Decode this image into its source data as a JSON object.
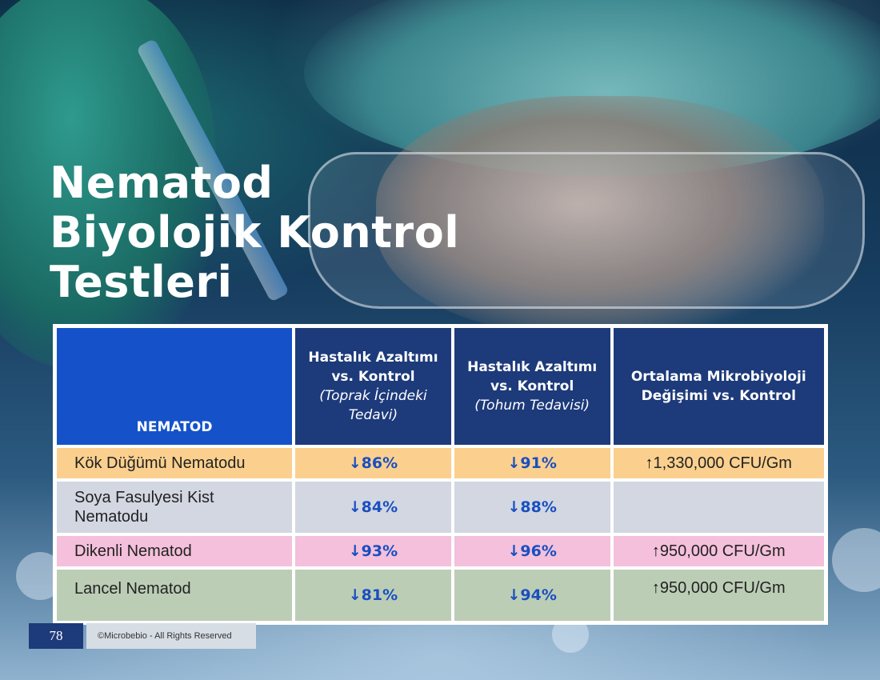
{
  "title_lines": [
    "Nematod",
    "Biyolojik Kontrol",
    "Testleri"
  ],
  "table": {
    "headers": [
      {
        "main": "NEMATOD",
        "sub": ""
      },
      {
        "main": "Hastalık Azaltımı vs. Kontrol",
        "sub": "(Toprak İçindeki Tedavi)"
      },
      {
        "main": "Hastalık Azaltımı vs. Kontrol",
        "sub": "(Tohum Tedavisi)"
      },
      {
        "main": "Ortalama Mikrobiyoloji Değişimi vs. Kontrol",
        "sub": ""
      }
    ],
    "rows": [
      {
        "name": "Kök Düğümü Nematodu",
        "soil": "86%",
        "seed": "91%",
        "cfu": "1,330,000 CFU/Gm",
        "bg": "#fbd08e"
      },
      {
        "name": "Soya Fasulyesi Kist Nematodu",
        "soil": "84%",
        "seed": "88%",
        "cfu": "",
        "bg": "#d2d7e2"
      },
      {
        "name": "Dikenli Nematod",
        "soil": "93%",
        "seed": "96%",
        "cfu": "950,000 CFU/Gm",
        "bg": "#f4c0dc"
      },
      {
        "name": "Lancel Nematod",
        "soil": "81%",
        "seed": "94%",
        "cfu": "950,000 CFU/Gm",
        "bg": "#bccdb6"
      }
    ],
    "arrow_down": "↓",
    "arrow_up": "↑"
  },
  "footer": {
    "page_number": "78",
    "copyright": "©Microbebio - All Rights Reserved"
  },
  "colors": {
    "header_blue": "#1d3a7a",
    "header_first_blue": "#1552c9",
    "percent_blue": "#1a4fc0"
  }
}
